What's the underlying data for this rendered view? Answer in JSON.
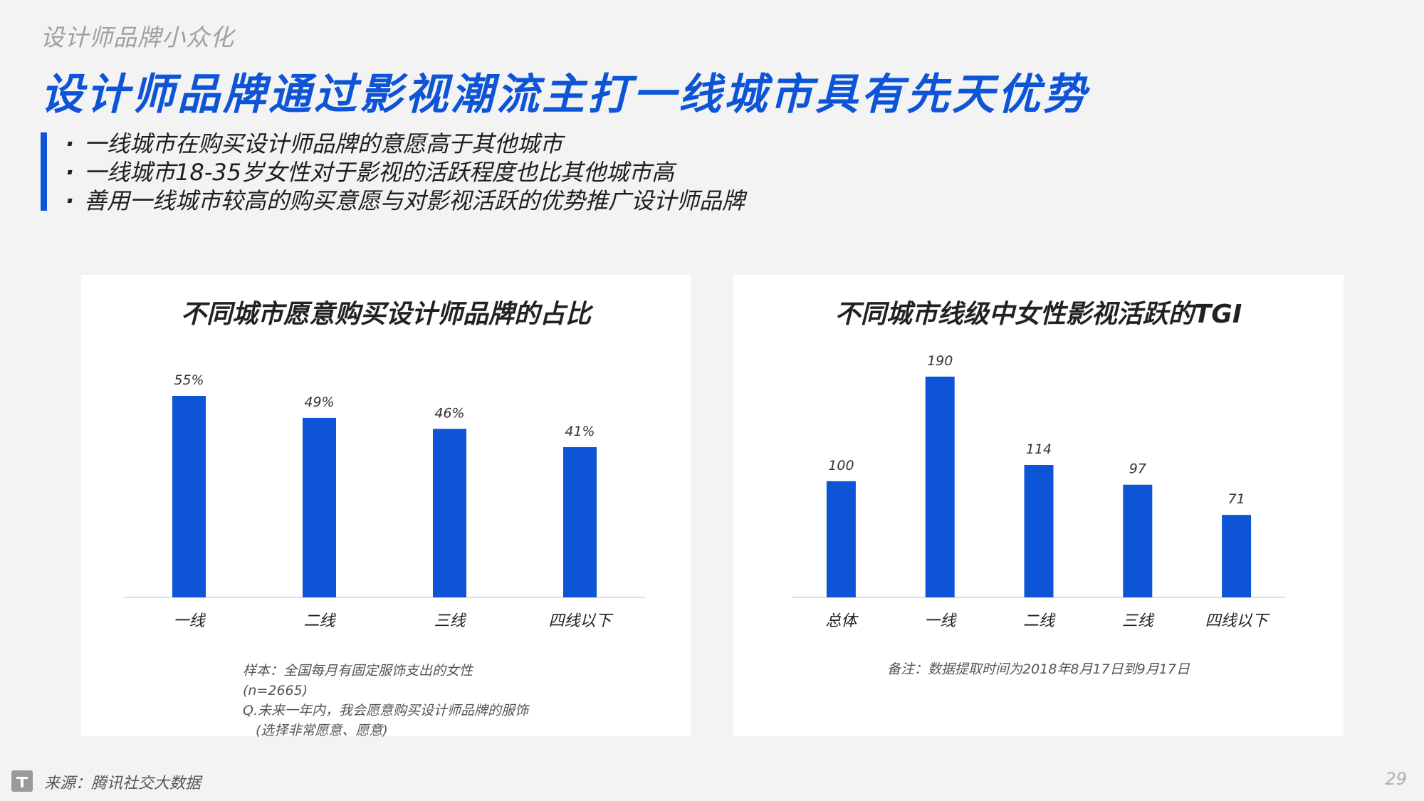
{
  "header": {
    "subtitle": "设计师品牌小众化",
    "headline": "设计师品牌通过影视潮流主打一线城市具有先天优势"
  },
  "bullets": [
    "一线城市在购买设计师品牌的意愿高于其他城市",
    "一线城市18-35岁女性对于影视的活跃程度也比其他城市高",
    "善用一线城市较高的购买意愿与对影视活跃的优势推广设计师品牌"
  ],
  "bullet_symbol": "·",
  "chart_data": [
    {
      "type": "bar",
      "title": "不同城市愿意购买设计师品牌的占比",
      "categories": [
        "一线",
        "二线",
        "三线",
        "四线以下"
      ],
      "values": [
        55,
        49,
        46,
        41
      ],
      "value_labels": [
        "55%",
        "49%",
        "46%",
        "41%"
      ],
      "ylim": [
        0,
        55
      ],
      "color": "#0d55d6",
      "grid": false
    },
    {
      "type": "bar",
      "title": "不同城市线级中女性影视活跃的TGI",
      "categories": [
        "总体",
        "一线",
        "二线",
        "三线",
        "四线以下"
      ],
      "values": [
        100,
        190,
        114,
        97,
        71
      ],
      "value_labels": [
        "100",
        "190",
        "114",
        "97",
        "71"
      ],
      "ylim": [
        0,
        190
      ],
      "color": "#0d55d6",
      "grid": false
    }
  ],
  "notes": {
    "left": [
      "样本：全国每月有固定服饰支出的女性",
      "(n=2665)",
      "Q.未来一年内，我会愿意购买设计师品牌的服饰",
      "(选择非常愿意、愿意)"
    ],
    "right": "备注：数据提取时间为2018年8月17日到9月17日"
  },
  "footer": {
    "source": "来源：腾讯社交大数据",
    "page_number": "29",
    "logo_icon": "tencent-logo-icon"
  },
  "colors": {
    "accent": "#0d55d6",
    "background": "#f3f3f3",
    "card": "#ffffff"
  }
}
